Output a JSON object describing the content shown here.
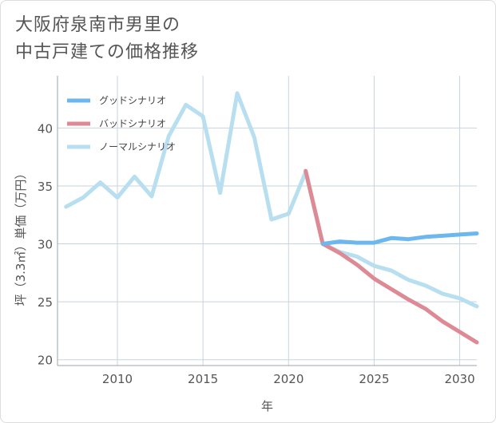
{
  "title_lines": [
    "大阪府泉南市男里の",
    "中古戸建ての価格推移"
  ],
  "chart_data": {
    "type": "line",
    "xlabel": "年",
    "ylabel": "坪（3.3㎡）単価（万円）",
    "xlim": [
      2006.5,
      2031
    ],
    "ylim": [
      19.5,
      44.5
    ],
    "xticks": [
      2010,
      2015,
      2020,
      2025,
      2030
    ],
    "yticks": [
      20,
      25,
      30,
      35,
      40
    ],
    "grid": true,
    "legend_position": "top-left",
    "series": [
      {
        "name": "グッドシナリオ",
        "color": "#6cb8ee",
        "x": [
          2022,
          2023,
          2024,
          2025,
          2026,
          2027,
          2028,
          2029,
          2030,
          2031
        ],
        "y": [
          30.0,
          30.2,
          30.1,
          30.1,
          30.5,
          30.4,
          30.6,
          30.7,
          30.8,
          30.9
        ]
      },
      {
        "name": "バッドシナリオ",
        "color": "#de8a94",
        "x": [
          2021,
          2022,
          2023,
          2024,
          2025,
          2026,
          2027,
          2028,
          2029,
          2030,
          2031
        ],
        "y": [
          36.3,
          30.0,
          29.2,
          28.2,
          27.0,
          26.1,
          25.2,
          24.4,
          23.3,
          22.4,
          21.5
        ]
      },
      {
        "name": "ノーマルシナリオ",
        "color": "#b7dff0",
        "x": [
          2007,
          2008,
          2009,
          2010,
          2011,
          2012,
          2013,
          2014,
          2015,
          2016,
          2017,
          2018,
          2019,
          2020,
          2021,
          2022,
          2023,
          2024,
          2025,
          2026,
          2027,
          2028,
          2029,
          2030,
          2031
        ],
        "y": [
          33.2,
          34.0,
          35.3,
          34.0,
          35.8,
          34.1,
          39.3,
          42.0,
          41.0,
          34.4,
          43.0,
          39.2,
          32.1,
          32.6,
          36.2,
          30.0,
          29.3,
          28.9,
          28.1,
          27.7,
          26.9,
          26.4,
          25.7,
          25.3,
          24.6
        ]
      }
    ]
  }
}
